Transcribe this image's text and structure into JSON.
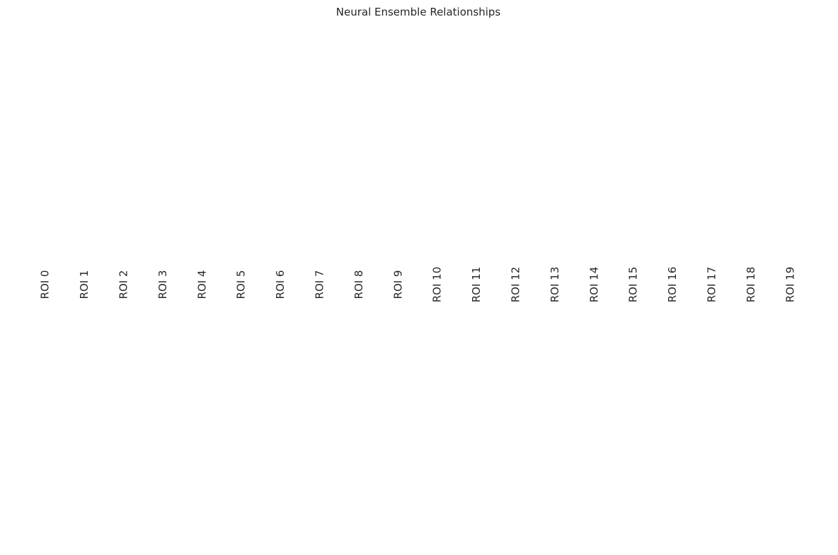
{
  "chart_data": {
    "type": "table",
    "title": "Neural Ensemble Relationships",
    "xlabel": "",
    "ylabel": "",
    "categories": [
      "ROI 0",
      "ROI 1",
      "ROI 2",
      "ROI 3",
      "ROI 4",
      "ROI 5",
      "ROI 6",
      "ROI 7",
      "ROI 8",
      "ROI 9",
      "ROI 10",
      "ROI 11",
      "ROI 12",
      "ROI 13",
      "ROI 14",
      "ROI 15",
      "ROI 16",
      "ROI 17",
      "ROI 18",
      "ROI 19"
    ],
    "series": [],
    "grid": false,
    "legend": "none"
  },
  "colors": {
    "text": "#262626",
    "background": "#ffffff"
  }
}
